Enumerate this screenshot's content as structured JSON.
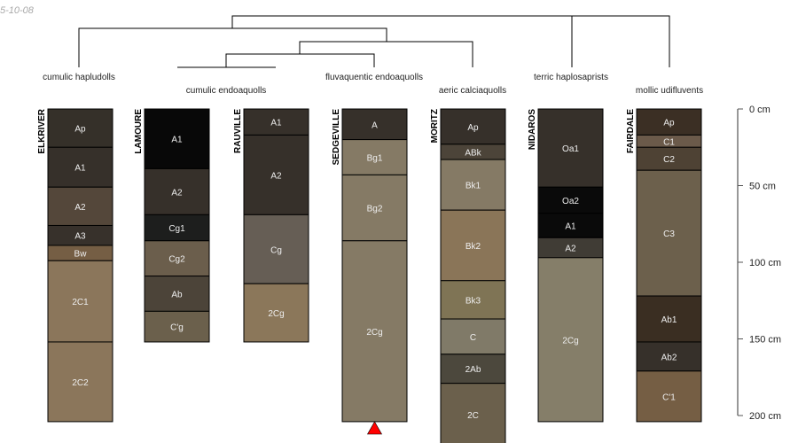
{
  "date_stamp": "5-10-08",
  "depth_scale": {
    "unit": "cm",
    "max_depth": 200,
    "ticks": [
      0,
      50,
      100,
      150,
      200
    ],
    "tick_labels": [
      "0 cm",
      "50 cm",
      "100 cm",
      "150 cm",
      "200 cm"
    ]
  },
  "taxa_labels": [
    {
      "text": "cumulic hapludolls",
      "profiles": [
        "ELKRIVER"
      ]
    },
    {
      "text": "cumulic endoaquolls",
      "profiles": [
        "LAMOURE",
        "RAUVILLE"
      ]
    },
    {
      "text": "fluvaquentic endoaquolls",
      "profiles": [
        "SEDGEVILLE"
      ]
    },
    {
      "text": "aeric calciaquolls",
      "profiles": [
        "MORITZ"
      ]
    },
    {
      "text": "terric haplosaprists",
      "profiles": [
        "NIDAROS"
      ]
    },
    {
      "text": "mollic udifluvents",
      "profiles": [
        "FAIRDALE"
      ]
    }
  ],
  "profiles": [
    {
      "name": "ELKRIVER",
      "horizons": [
        {
          "name": "Ap",
          "top": 0,
          "bottom": 25,
          "color": "#353029"
        },
        {
          "name": "A1",
          "top": 25,
          "bottom": 51,
          "color": "#36302a"
        },
        {
          "name": "A2",
          "top": 51,
          "bottom": 76,
          "color": "#54473a"
        },
        {
          "name": "A3",
          "top": 76,
          "bottom": 89,
          "color": "#37312b"
        },
        {
          "name": "Bw",
          "top": 89,
          "bottom": 99,
          "color": "#755e44"
        },
        {
          "name": "2C1",
          "top": 99,
          "bottom": 152,
          "color": "#8b765b"
        },
        {
          "name": "2C2",
          "top": 152,
          "bottom": 204,
          "color": "#8b765b"
        }
      ]
    },
    {
      "name": "LAMOURE",
      "horizons": [
        {
          "name": "A1",
          "top": 0,
          "bottom": 39,
          "color": "#080808"
        },
        {
          "name": "A2",
          "top": 39,
          "bottom": 69,
          "color": "#36302a"
        },
        {
          "name": "Cg1",
          "top": 69,
          "bottom": 86,
          "color": "#1d1e1d"
        },
        {
          "name": "Cg2",
          "top": 86,
          "bottom": 109,
          "color": "#6b5e4c"
        },
        {
          "name": "Ab",
          "top": 109,
          "bottom": 132,
          "color": "#4c4439"
        },
        {
          "name": "C'g",
          "top": 132,
          "bottom": 152,
          "color": "#6b604c"
        }
      ]
    },
    {
      "name": "RAUVILLE",
      "horizons": [
        {
          "name": "A1",
          "top": 0,
          "bottom": 17,
          "color": "#36302a"
        },
        {
          "name": "A2",
          "top": 17,
          "bottom": 69,
          "color": "#36302a"
        },
        {
          "name": "Cg",
          "top": 69,
          "bottom": 114,
          "color": "#665e55"
        },
        {
          "name": "2Cg",
          "top": 114,
          "bottom": 152,
          "color": "#8b775a"
        }
      ]
    },
    {
      "name": "SEDGEVILLE",
      "marker": "triangle",
      "marker_color": "#ff0000",
      "horizons": [
        {
          "name": "A",
          "top": 0,
          "bottom": 20,
          "color": "#36302a"
        },
        {
          "name": "Bg1",
          "top": 20,
          "bottom": 43,
          "color": "#857a65"
        },
        {
          "name": "Bg2",
          "top": 43,
          "bottom": 86,
          "color": "#857a65"
        },
        {
          "name": "2Cg",
          "top": 86,
          "bottom": 204,
          "color": "#857a65"
        }
      ]
    },
    {
      "name": "MORITZ",
      "horizons": [
        {
          "name": "Ap",
          "top": 0,
          "bottom": 23,
          "color": "#36302a"
        },
        {
          "name": "ABk",
          "top": 23,
          "bottom": 33,
          "color": "#4c4439"
        },
        {
          "name": "Bk1",
          "top": 33,
          "bottom": 66,
          "color": "#857a65"
        },
        {
          "name": "Bk2",
          "top": 66,
          "bottom": 112,
          "color": "#8a7558"
        },
        {
          "name": "Bk3",
          "top": 112,
          "bottom": 137,
          "color": "#7f7455"
        },
        {
          "name": "C",
          "top": 137,
          "bottom": 160,
          "color": "#807a68"
        },
        {
          "name": "2Ab",
          "top": 160,
          "bottom": 179,
          "color": "#4c483d"
        },
        {
          "name": "2C",
          "top": 179,
          "bottom": 220,
          "color": "#6b604c"
        }
      ]
    },
    {
      "name": "NIDAROS",
      "horizons": [
        {
          "name": "Oa1",
          "top": 0,
          "bottom": 51,
          "color": "#36302a"
        },
        {
          "name": "Oa2",
          "top": 51,
          "bottom": 68,
          "color": "#0a0a0a"
        },
        {
          "name": "A1",
          "top": 68,
          "bottom": 84,
          "color": "#0a0a0a"
        },
        {
          "name": "A2",
          "top": 84,
          "bottom": 97,
          "color": "#403c35"
        },
        {
          "name": "2Cg",
          "top": 97,
          "bottom": 204,
          "color": "#857e69"
        }
      ]
    },
    {
      "name": "FAIRDALE",
      "horizons": [
        {
          "name": "Ap",
          "top": 0,
          "bottom": 17,
          "color": "#3b2f24"
        },
        {
          "name": "C1",
          "top": 17,
          "bottom": 25,
          "color": "#6b5a4a"
        },
        {
          "name": "C2",
          "top": 25,
          "bottom": 40,
          "color": "#4e4234"
        },
        {
          "name": "C3",
          "top": 40,
          "bottom": 122,
          "color": "#6c604c"
        },
        {
          "name": "Ab1",
          "top": 122,
          "bottom": 152,
          "color": "#3a2e22"
        },
        {
          "name": "Ab2",
          "top": 152,
          "bottom": 171,
          "color": "#36302a"
        },
        {
          "name": "C'1",
          "top": 171,
          "bottom": 204,
          "color": "#755e44"
        }
      ]
    }
  ]
}
